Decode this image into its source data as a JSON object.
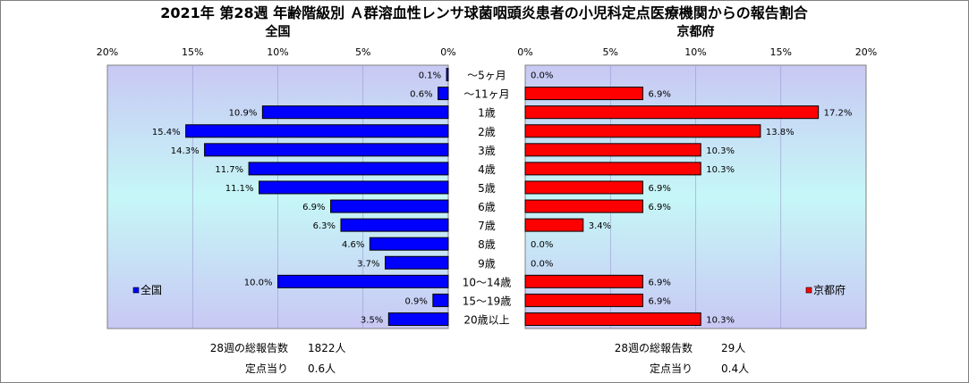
{
  "chart_data": {
    "type": "bar",
    "orientation": "horizontal",
    "layout": "butterfly",
    "title": "2021年 第28週 年齢階級別 Ａ群溶血性レンサ球菌咽頭炎患者の小児科定点医療機関からの報告割合",
    "categories": [
      "～5ヶ月",
      "～11ヶ月",
      "1歳",
      "2歳",
      "3歳",
      "4歳",
      "5歳",
      "6歳",
      "7歳",
      "8歳",
      "9歳",
      "10～14歳",
      "15～19歳",
      "20歳以上"
    ],
    "panels": [
      {
        "subtitle": "全国",
        "legend": "全国",
        "color": "#0000ff",
        "xlim": [
          0,
          20
        ],
        "ticks": [
          "20%",
          "15%",
          "10%",
          "5%",
          "0%"
        ],
        "values": [
          0.1,
          0.6,
          10.9,
          15.4,
          14.3,
          11.7,
          11.1,
          6.9,
          6.3,
          4.6,
          3.7,
          10.0,
          0.9,
          3.5
        ],
        "labels": [
          "0.1%",
          "0.6%",
          "10.9%",
          "15.4%",
          "14.3%",
          "11.7%",
          "11.1%",
          "6.9%",
          "6.3%",
          "4.6%",
          "3.7%",
          "10.0%",
          "0.9%",
          "3.5%"
        ],
        "footer": [
          {
            "label": "28週の総報告数",
            "value": "1822人"
          },
          {
            "label": "定点当り",
            "value": "0.6人"
          }
        ]
      },
      {
        "subtitle": "京都府",
        "legend": "京都府",
        "color": "#ff0000",
        "xlim": [
          0,
          20
        ],
        "ticks": [
          "0%",
          "5%",
          "10%",
          "15%",
          "20%"
        ],
        "values": [
          0.0,
          6.9,
          17.2,
          13.8,
          10.3,
          10.3,
          6.9,
          6.9,
          3.4,
          0.0,
          0.0,
          6.9,
          6.9,
          10.3
        ],
        "labels": [
          "0.0%",
          "6.9%",
          "17.2%",
          "13.8%",
          "10.3%",
          "10.3%",
          "6.9%",
          "6.9%",
          "3.4%",
          "0.0%",
          "0.0%",
          "6.9%",
          "6.9%",
          "10.3%"
        ],
        "footer": [
          {
            "label": "28週の総報告数",
            "value": "29人"
          },
          {
            "label": "定点当り",
            "value": "0.4人"
          }
        ]
      }
    ]
  }
}
